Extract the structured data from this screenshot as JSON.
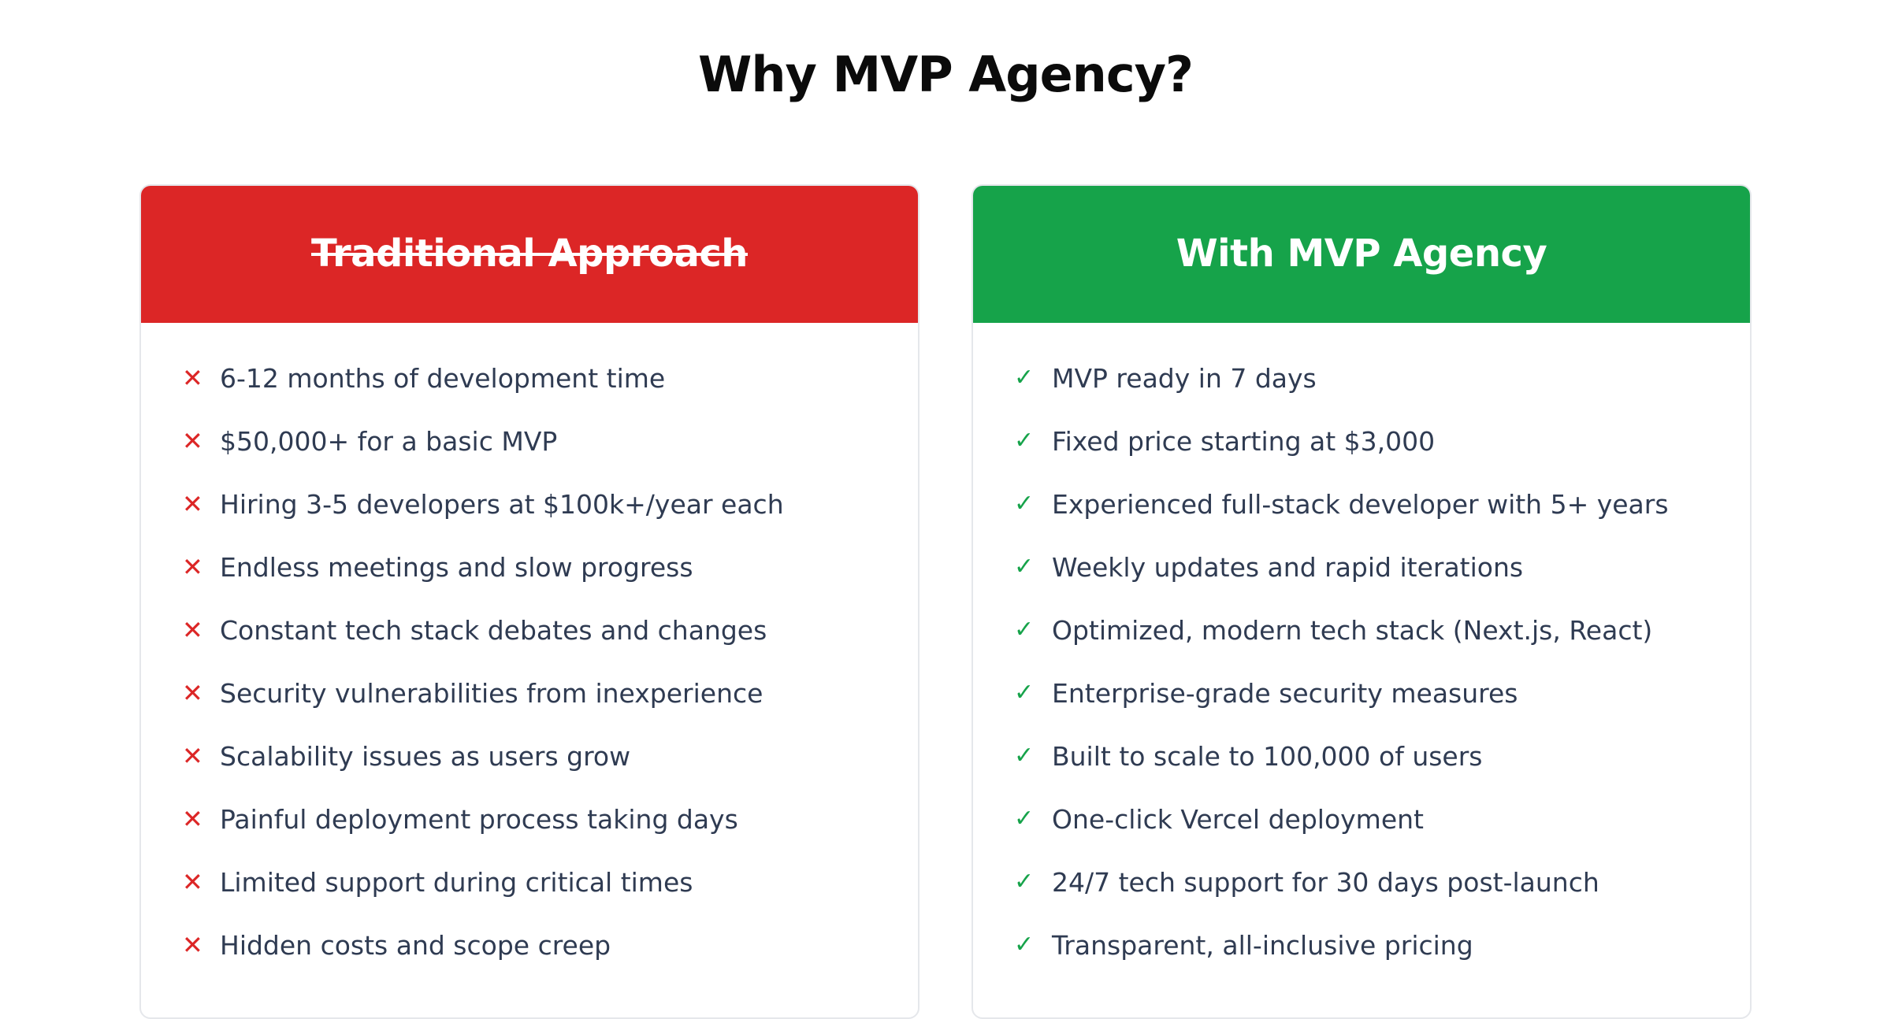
{
  "heading": "Why MVP Agency?",
  "traditional": {
    "title": "Traditional Approach",
    "header_color": "#dc2626",
    "icon": "x-mark-icon",
    "items": [
      "6-12 months of development time",
      "$50,000+ for a basic MVP",
      "Hiring 3-5 developers at $100k+/year each",
      "Endless meetings and slow progress",
      "Constant tech stack debates and changes",
      "Security vulnerabilities from inexperience",
      "Scalability issues as users grow",
      "Painful deployment process taking days",
      "Limited support during critical times",
      "Hidden costs and scope creep"
    ]
  },
  "agency": {
    "title": "With MVP Agency",
    "header_color": "#16a34a",
    "icon": "checkmark-icon",
    "items": [
      "MVP ready in 7 days",
      "Fixed price starting at $3,000",
      "Experienced full-stack developer with 5+ years",
      "Weekly updates and rapid iterations",
      "Optimized, modern tech stack (Next.js, React)",
      "Enterprise-grade security measures",
      "Built to scale to 100,000 of users",
      "One-click Vercel deployment",
      "24/7 tech support for 30 days post-launch",
      "Transparent, all-inclusive pricing"
    ]
  }
}
